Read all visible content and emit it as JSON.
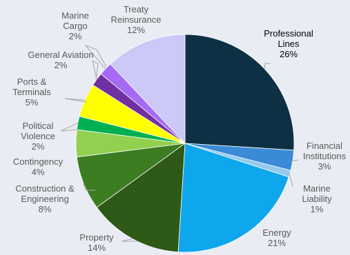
{
  "chart_data": {
    "type": "pie",
    "slices": [
      {
        "label": "Professional Lines",
        "label_lines": [
          "Professional",
          "Lines"
        ],
        "value": 26,
        "value_label": "26%",
        "color": "#0d3044"
      },
      {
        "label": "Financial Institutions",
        "label_lines": [
          "Financial",
          "Institutions"
        ],
        "value": 3,
        "value_label": "3%",
        "color": "#3a8ad8"
      },
      {
        "label": "Marine Liability",
        "label_lines": [
          "Marine",
          "Liability"
        ],
        "value": 1,
        "value_label": "1%",
        "color": "#94c9f0"
      },
      {
        "label": "Energy",
        "label_lines": [
          "Energy"
        ],
        "value": 21,
        "value_label": "21%",
        "color": "#0fa7ec"
      },
      {
        "label": "Property",
        "label_lines": [
          "Property"
        ],
        "value": 14,
        "value_label": "14%",
        "color": "#2e5917"
      },
      {
        "label": "Construction & Engineering",
        "label_lines": [
          "Construction &",
          "Engineering"
        ],
        "value": 8,
        "value_label": "8%",
        "color": "#3c7d22"
      },
      {
        "label": "Contingency",
        "label_lines": [
          "Contingency"
        ],
        "value": 4,
        "value_label": "4%",
        "color": "#92d050"
      },
      {
        "label": "Political Violence",
        "label_lines": [
          "Political",
          "Violence"
        ],
        "value": 2,
        "value_label": "2%",
        "color": "#00b050"
      },
      {
        "label": "Ports & Terminals",
        "label_lines": [
          "Ports &",
          "Terminals"
        ],
        "value": 5,
        "value_label": "5%",
        "color": "#ffff00"
      },
      {
        "label": "General Aviation",
        "label_lines": [
          "General Aviation"
        ],
        "value": 2,
        "value_label": "2%",
        "color": "#7030a0"
      },
      {
        "label": "Marine Cargo",
        "label_lines": [
          "Marine",
          "Cargo"
        ],
        "value": 2,
        "value_label": "2%",
        "color": "#a56bf4"
      },
      {
        "label": "Treaty Reinsurance",
        "label_lines": [
          "Treaty",
          "Reinsurance"
        ],
        "value": 12,
        "value_label": "12%",
        "color": "#ccc8f7"
      }
    ],
    "legend": "none",
    "data_labels": "outside with leader lines",
    "label_color": "#595959",
    "highlight_label_color": "#000000"
  }
}
